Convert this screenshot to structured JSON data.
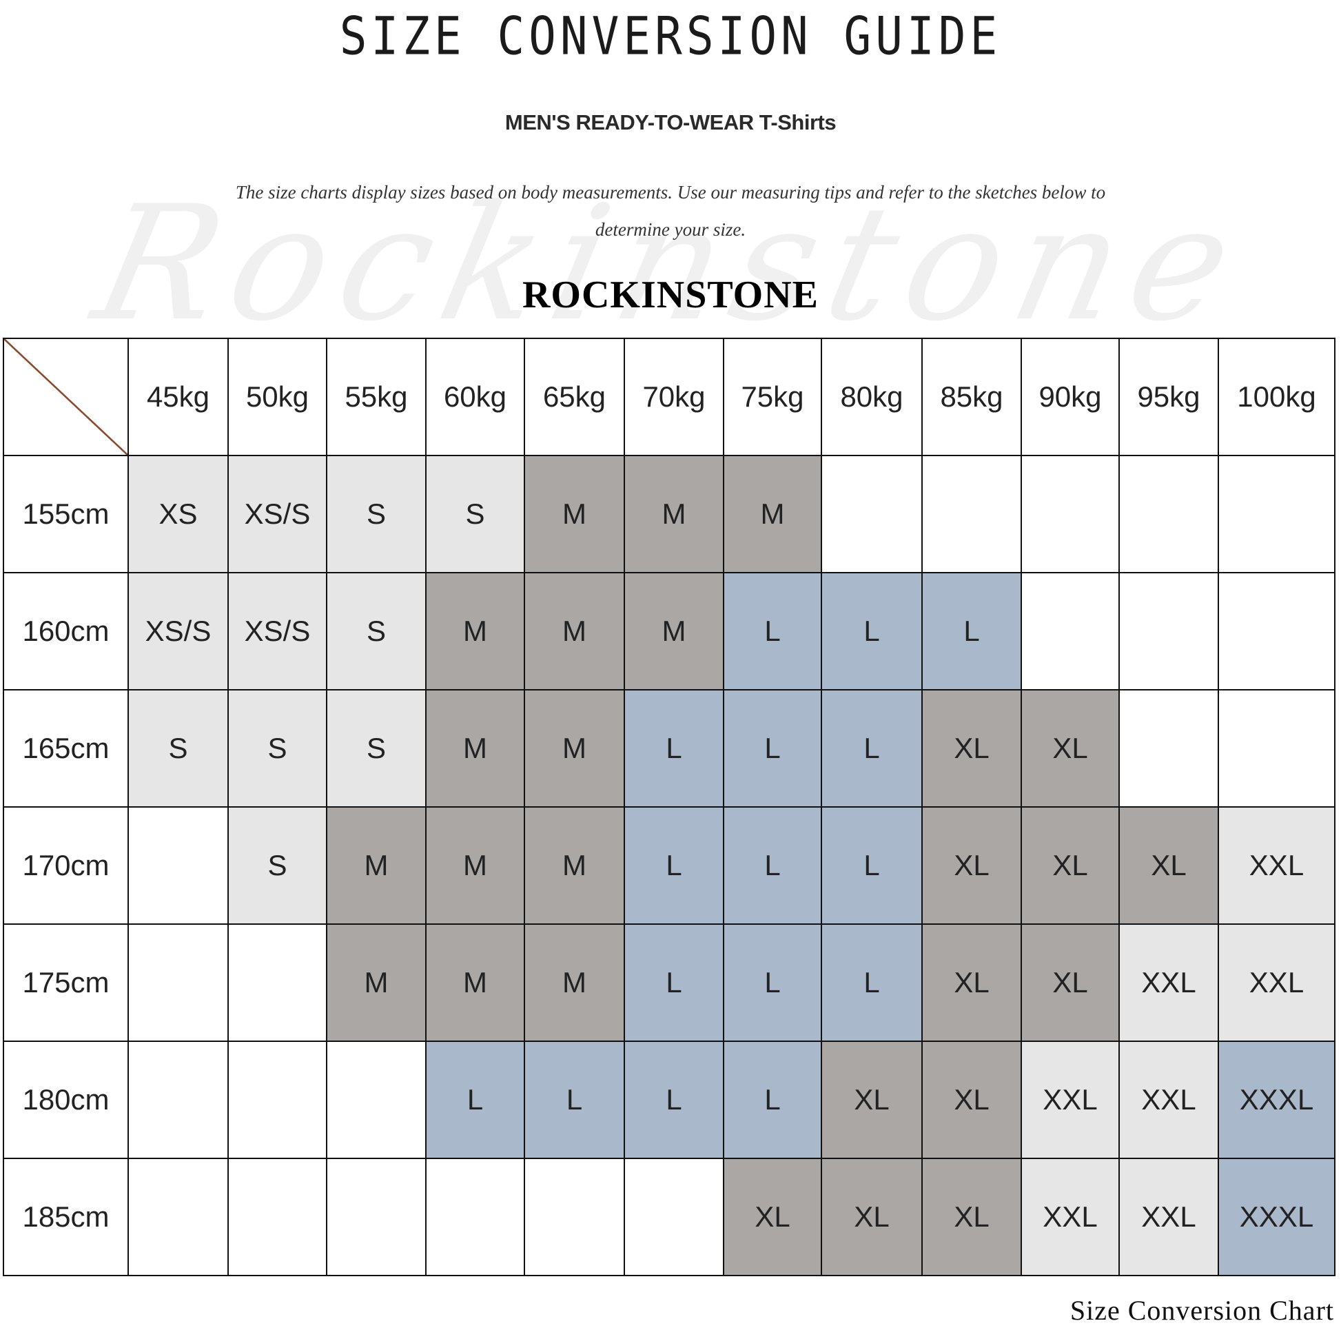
{
  "header": {
    "title": "SIZE CONVERSION GUIDE",
    "subtitle": "MEN'S READY-TO-WEAR T-Shirts",
    "description": "The size charts display sizes based on body measurements. Use our measuring tips and refer to the sketches below to determine your size.",
    "brand": "ROCKINSTONE",
    "watermark": "Rockinstone"
  },
  "colors": {
    "light": "#e6e6e6",
    "dark": "#aba7a5",
    "blue": "#aab8cc"
  },
  "table": {
    "columns": [
      "45kg",
      "50kg",
      "55kg",
      "60kg",
      "65kg",
      "70kg",
      "75kg",
      "80kg",
      "85kg",
      "90kg",
      "95kg",
      "100kg"
    ],
    "rows": [
      {
        "height": "155cm",
        "cells": [
          "XS",
          "XS/S",
          "S",
          "S",
          "M",
          "M",
          "M",
          "",
          "",
          "",
          "",
          ""
        ]
      },
      {
        "height": "160cm",
        "cells": [
          "XS/S",
          "XS/S",
          "S",
          "M",
          "M",
          "M",
          "L",
          "L",
          "L",
          "",
          "",
          ""
        ]
      },
      {
        "height": "165cm",
        "cells": [
          "S",
          "S",
          "S",
          "M",
          "M",
          "L",
          "L",
          "L",
          "XL",
          "XL",
          "",
          ""
        ]
      },
      {
        "height": "170cm",
        "cells": [
          "",
          "S",
          "M",
          "M",
          "M",
          "L",
          "L",
          "L",
          "XL",
          "XL",
          "XL",
          "XXL"
        ]
      },
      {
        "height": "175cm",
        "cells": [
          "",
          "",
          "M",
          "M",
          "M",
          "L",
          "L",
          "L",
          "XL",
          "XL",
          "XXL",
          "XXL"
        ]
      },
      {
        "height": "180cm",
        "cells": [
          "",
          "",
          "",
          "L",
          "L",
          "L",
          "L",
          "XL",
          "XL",
          "XXL",
          "XXL",
          "XXXL"
        ]
      },
      {
        "height": "185cm",
        "cells": [
          "",
          "",
          "",
          "",
          "",
          "",
          "XL",
          "XL",
          "XL",
          "XXL",
          "XXL",
          "XXXL"
        ]
      }
    ]
  },
  "footer": "Size Conversion Chart"
}
